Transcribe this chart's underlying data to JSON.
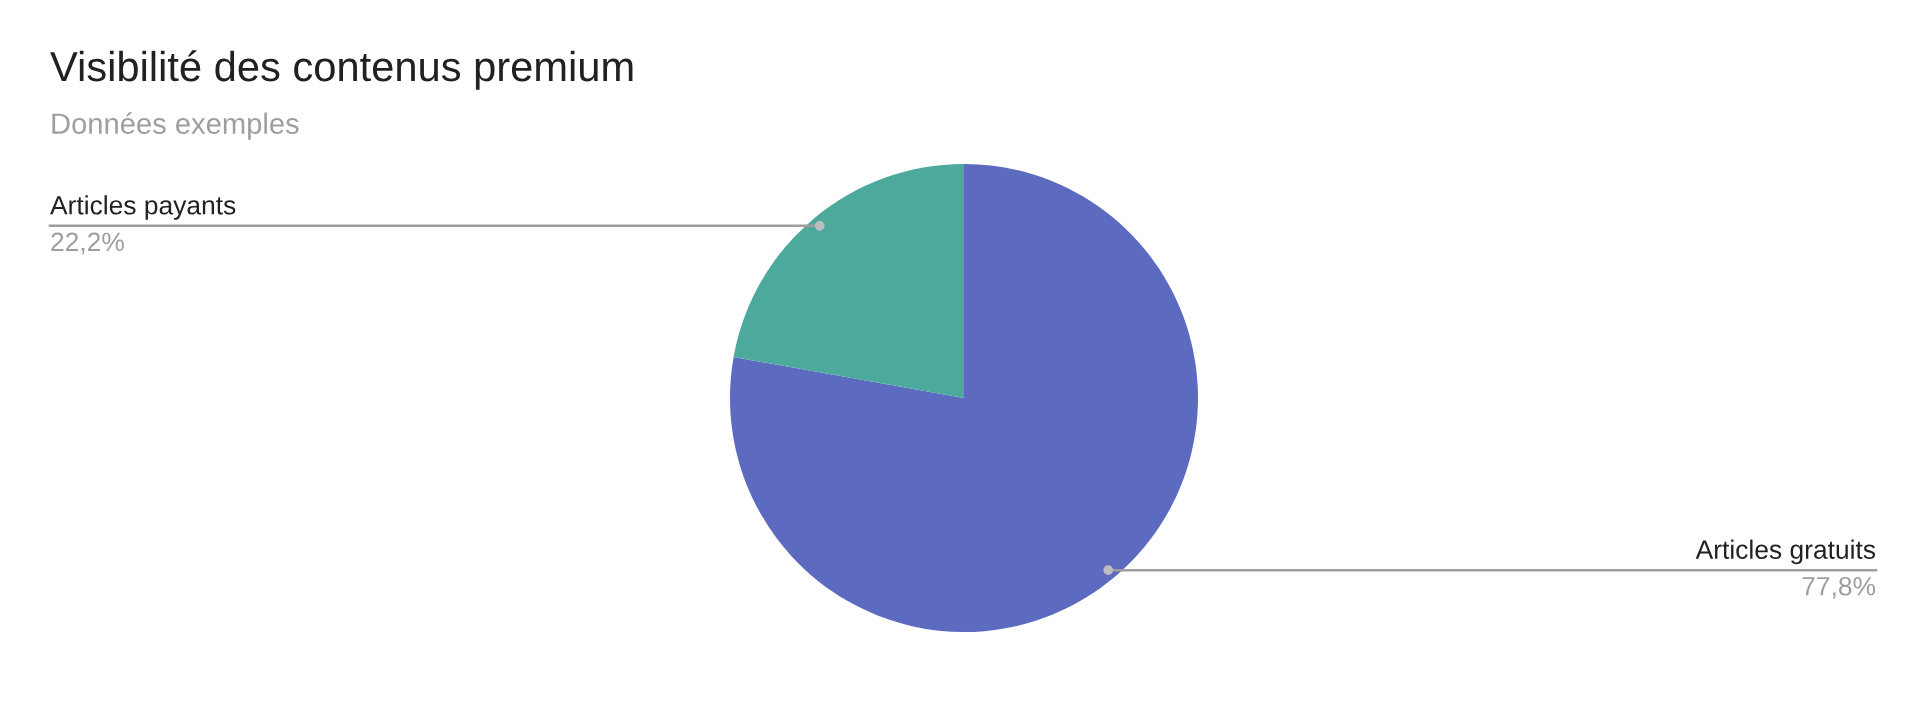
{
  "chart_data": {
    "type": "pie",
    "title": "Visibilité des contenus premium",
    "subtitle": "Données exemples",
    "categories": [
      "Articles gratuits",
      "Articles payants"
    ],
    "values": [
      77.8,
      22.2
    ],
    "colors": [
      "#5c6bc0",
      "#4ea99d"
    ],
    "value_labels": [
      "77,8%",
      "22,2%"
    ],
    "legend": false
  }
}
